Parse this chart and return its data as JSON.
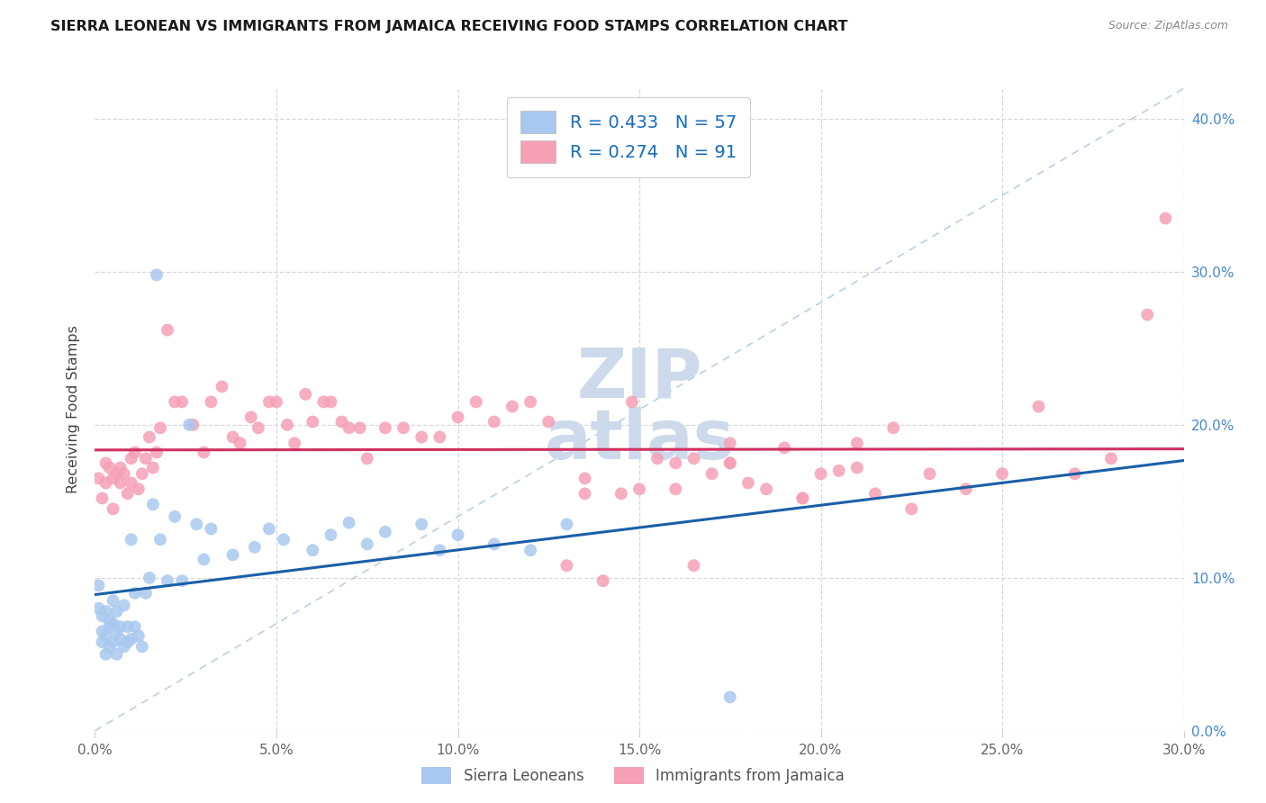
{
  "title": "SIERRA LEONEAN VS IMMIGRANTS FROM JAMAICA RECEIVING FOOD STAMPS CORRELATION CHART",
  "source": "Source: ZipAtlas.com",
  "ylabel": "Receiving Food Stamps",
  "xlim": [
    0.0,
    0.3
  ],
  "ylim": [
    0.0,
    0.42
  ],
  "xticks": [
    0.0,
    0.05,
    0.1,
    0.15,
    0.2,
    0.25,
    0.3
  ],
  "yticks": [
    0.0,
    0.1,
    0.2,
    0.3,
    0.4
  ],
  "blue_R": "0.433",
  "blue_N": "57",
  "pink_R": "0.274",
  "pink_N": "91",
  "blue_scatter_color": "#a8c8ef",
  "pink_scatter_color": "#f5a0b5",
  "blue_line_color": "#1a5fa8",
  "pink_line_color": "#d03060",
  "diag_color": "#b0c8e0",
  "watermark_color": "#ccdaeb",
  "bg_color": "#ffffff",
  "grid_color": "#d8d8d8",
  "right_tick_color": "#4488cc",
  "left_tick_color": "#666666",
  "title_color": "#1a1a1a",
  "source_color": "#888888",
  "legend_text_color": "#1a6fc4",
  "bottom_legend_color": "#555555",
  "blue_x": [
    0.001,
    0.001,
    0.002,
    0.002,
    0.002,
    0.003,
    0.003,
    0.003,
    0.004,
    0.004,
    0.004,
    0.005,
    0.005,
    0.005,
    0.006,
    0.006,
    0.006,
    0.007,
    0.007,
    0.008,
    0.008,
    0.009,
    0.009,
    0.01,
    0.01,
    0.011,
    0.011,
    0.012,
    0.013,
    0.014,
    0.015,
    0.016,
    0.017,
    0.018,
    0.02,
    0.022,
    0.024,
    0.026,
    0.028,
    0.03,
    0.032,
    0.038,
    0.044,
    0.048,
    0.052,
    0.06,
    0.065,
    0.07,
    0.075,
    0.08,
    0.09,
    0.095,
    0.1,
    0.11,
    0.12,
    0.13,
    0.175
  ],
  "blue_y": [
    0.095,
    0.08,
    0.065,
    0.075,
    0.058,
    0.078,
    0.062,
    0.05,
    0.072,
    0.055,
    0.068,
    0.07,
    0.058,
    0.085,
    0.065,
    0.05,
    0.078,
    0.068,
    0.06,
    0.082,
    0.055,
    0.068,
    0.058,
    0.125,
    0.06,
    0.09,
    0.068,
    0.062,
    0.055,
    0.09,
    0.1,
    0.148,
    0.298,
    0.125,
    0.098,
    0.14,
    0.098,
    0.2,
    0.135,
    0.112,
    0.132,
    0.115,
    0.12,
    0.132,
    0.125,
    0.118,
    0.128,
    0.136,
    0.122,
    0.13,
    0.135,
    0.118,
    0.128,
    0.122,
    0.118,
    0.135,
    0.022
  ],
  "pink_x": [
    0.001,
    0.002,
    0.003,
    0.003,
    0.004,
    0.005,
    0.005,
    0.006,
    0.007,
    0.007,
    0.008,
    0.009,
    0.01,
    0.01,
    0.011,
    0.012,
    0.013,
    0.014,
    0.015,
    0.016,
    0.017,
    0.018,
    0.02,
    0.022,
    0.024,
    0.027,
    0.03,
    0.032,
    0.035,
    0.038,
    0.04,
    0.043,
    0.045,
    0.048,
    0.05,
    0.053,
    0.055,
    0.058,
    0.06,
    0.063,
    0.065,
    0.068,
    0.07,
    0.073,
    0.075,
    0.08,
    0.085,
    0.09,
    0.095,
    0.1,
    0.105,
    0.11,
    0.115,
    0.12,
    0.125,
    0.13,
    0.135,
    0.14,
    0.148,
    0.155,
    0.16,
    0.165,
    0.17,
    0.175,
    0.18,
    0.19,
    0.2,
    0.21,
    0.22,
    0.23,
    0.24,
    0.25,
    0.26,
    0.27,
    0.28,
    0.29,
    0.295,
    0.15,
    0.165,
    0.175,
    0.185,
    0.195,
    0.205,
    0.215,
    0.225,
    0.135,
    0.145,
    0.16,
    0.175,
    0.195,
    0.21
  ],
  "pink_y": [
    0.165,
    0.152,
    0.162,
    0.175,
    0.172,
    0.145,
    0.165,
    0.168,
    0.162,
    0.172,
    0.168,
    0.155,
    0.178,
    0.162,
    0.182,
    0.158,
    0.168,
    0.178,
    0.192,
    0.172,
    0.182,
    0.198,
    0.262,
    0.215,
    0.215,
    0.2,
    0.182,
    0.215,
    0.225,
    0.192,
    0.188,
    0.205,
    0.198,
    0.215,
    0.215,
    0.2,
    0.188,
    0.22,
    0.202,
    0.215,
    0.215,
    0.202,
    0.198,
    0.198,
    0.178,
    0.198,
    0.198,
    0.192,
    0.192,
    0.205,
    0.215,
    0.202,
    0.212,
    0.215,
    0.202,
    0.108,
    0.155,
    0.098,
    0.215,
    0.178,
    0.158,
    0.108,
    0.168,
    0.188,
    0.162,
    0.185,
    0.168,
    0.188,
    0.198,
    0.168,
    0.158,
    0.168,
    0.212,
    0.168,
    0.178,
    0.272,
    0.335,
    0.158,
    0.178,
    0.175,
    0.158,
    0.152,
    0.17,
    0.155,
    0.145,
    0.165,
    0.155,
    0.175,
    0.175,
    0.152,
    0.172
  ]
}
